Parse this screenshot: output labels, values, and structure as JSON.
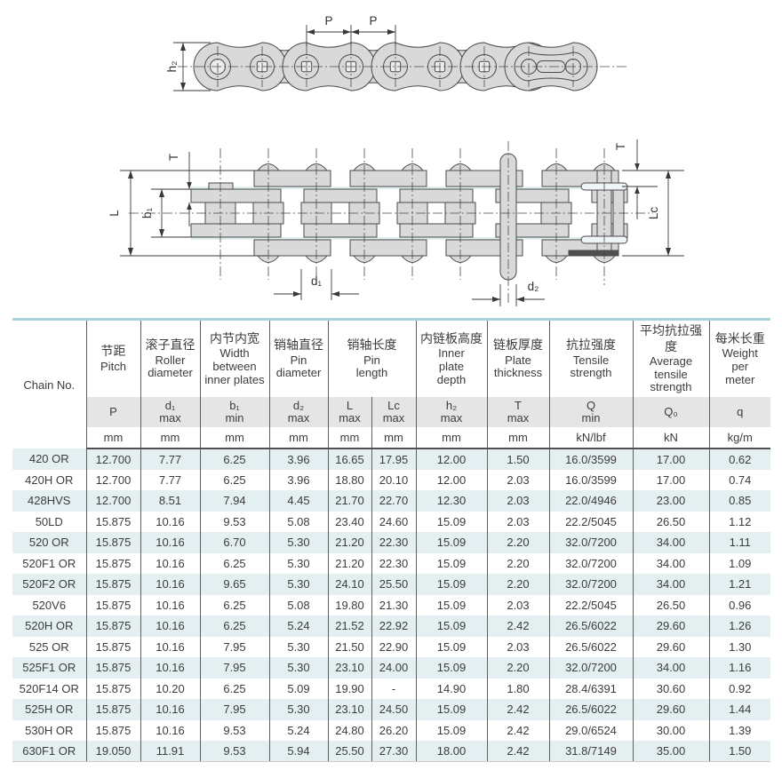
{
  "diagram": {
    "side": {
      "p_left": "P",
      "p_right": "P",
      "h2": "h₂"
    },
    "plan": {
      "t_left": "T",
      "length_l": "L",
      "b1": "b₁",
      "d1": "d₁",
      "d2": "d₂",
      "t_right": "T",
      "lc": "Lc"
    }
  },
  "table": {
    "chain_no_label": "Chain No.",
    "columns": [
      {
        "cn": "节距",
        "en": "Pitch",
        "sym": "P",
        "qual": "",
        "unit": "mm"
      },
      {
        "cn": "滚子直径",
        "en": "Roller diameter",
        "sym": "d₁",
        "qual": "max",
        "unit": "mm"
      },
      {
        "cn": "内节内宽",
        "en": "Width between inner plates",
        "sym": "b₁",
        "qual": "min",
        "unit": "mm"
      },
      {
        "cn": "销轴直径",
        "en": "Pin diameter",
        "sym": "d₂",
        "qual": "max",
        "unit": "mm"
      },
      {
        "cn": "销轴长度",
        "en": "Pin length",
        "sym": "L",
        "qual": "max",
        "unit": "mm"
      },
      {
        "cn": "",
        "en": "",
        "sym": "Lc",
        "qual": "max",
        "unit": "mm"
      },
      {
        "cn": "内链板高度",
        "en": "Inner plate depth",
        "sym": "h₂",
        "qual": "max",
        "unit": "mm"
      },
      {
        "cn": "链板厚度",
        "en": "Plate thickness",
        "sym": "T",
        "qual": "max",
        "unit": "mm"
      },
      {
        "cn": "抗拉强度",
        "en": "Tensile strength",
        "sym": "Q",
        "qual": "min",
        "unit": "kN/lbf"
      },
      {
        "cn": "平均抗拉强度",
        "en": "Average tensile strength",
        "sym": "Q₀",
        "qual": "",
        "unit": "kN"
      },
      {
        "cn": "每米长重",
        "en": "Weight per meter",
        "sym": "q",
        "qual": "",
        "unit": "kg/m"
      }
    ],
    "rows": [
      [
        "420 OR",
        "12.700",
        "7.77",
        "6.25",
        "3.96",
        "16.65",
        "17.95",
        "12.00",
        "1.50",
        "16.0/3599",
        "17.00",
        "0.62"
      ],
      [
        "420H OR",
        "12.700",
        "7.77",
        "6.25",
        "3.96",
        "18.80",
        "20.10",
        "12.00",
        "2.03",
        "16.0/3599",
        "17.00",
        "0.74"
      ],
      [
        "428HVS",
        "12.700",
        "8.51",
        "7.94",
        "4.45",
        "21.70",
        "22.70",
        "12.30",
        "2.03",
        "22.0/4946",
        "23.00",
        "0.85"
      ],
      [
        "50LD",
        "15.875",
        "10.16",
        "9.53",
        "5.08",
        "23.40",
        "24.60",
        "15.09",
        "2.03",
        "22.2/5045",
        "26.50",
        "1.12"
      ],
      [
        "520 OR",
        "15.875",
        "10.16",
        "6.70",
        "5.30",
        "21.20",
        "22.30",
        "15.09",
        "2.20",
        "32.0/7200",
        "34.00",
        "1.11"
      ],
      [
        "520F1 OR",
        "15.875",
        "10.16",
        "6.25",
        "5.30",
        "21.20",
        "22.30",
        "15.09",
        "2.20",
        "32.0/7200",
        "34.00",
        "1.09"
      ],
      [
        "520F2 OR",
        "15.875",
        "10.16",
        "9.65",
        "5.30",
        "24.10",
        "25.50",
        "15.09",
        "2.20",
        "32.0/7200",
        "34.00",
        "1.21"
      ],
      [
        "520V6",
        "15.875",
        "10.16",
        "6.25",
        "5.08",
        "19.80",
        "21.30",
        "15.09",
        "2.03",
        "22.2/5045",
        "26.50",
        "0.96"
      ],
      [
        "520H OR",
        "15.875",
        "10.16",
        "6.25",
        "5.24",
        "21.52",
        "22.92",
        "15.09",
        "2.42",
        "26.5/6022",
        "29.60",
        "1.26"
      ],
      [
        "525 OR",
        "15.875",
        "10.16",
        "7.95",
        "5.30",
        "21.50",
        "22.90",
        "15.09",
        "2.03",
        "26.5/6022",
        "29.60",
        "1.30"
      ],
      [
        "525F1 OR",
        "15.875",
        "10.16",
        "7.95",
        "5.30",
        "23.10",
        "24.00",
        "15.09",
        "2.20",
        "32.0/7200",
        "34.00",
        "1.16"
      ],
      [
        "520F14 OR",
        "15.875",
        "10.20",
        "6.25",
        "5.09",
        "19.90",
        "-",
        "14.90",
        "1.80",
        "28.4/6391",
        "30.60",
        "0.92"
      ],
      [
        "525H OR",
        "15.875",
        "10.16",
        "7.95",
        "5.30",
        "23.10",
        "24.50",
        "15.09",
        "2.42",
        "26.5/6022",
        "29.60",
        "1.44"
      ],
      [
        "530H OR",
        "15.875",
        "10.16",
        "9.53",
        "5.24",
        "24.80",
        "26.20",
        "15.09",
        "2.42",
        "29.0/6524",
        "30.00",
        "1.39"
      ],
      [
        "630F1 OR",
        "19.050",
        "11.91",
        "9.53",
        "5.94",
        "25.50",
        "27.30",
        "18.00",
        "2.42",
        "31.8/7149",
        "35.00",
        "1.50"
      ]
    ]
  }
}
